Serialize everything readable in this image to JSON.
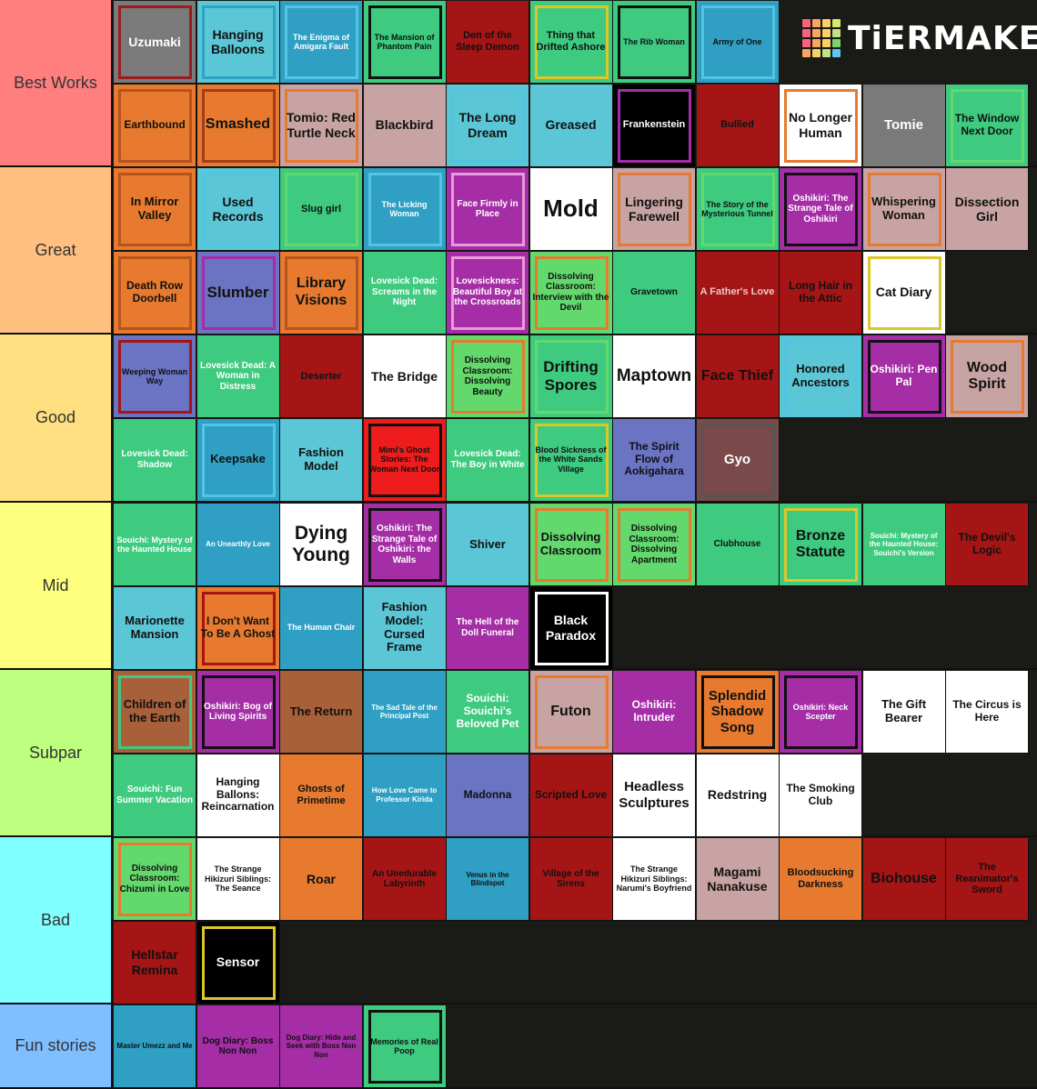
{
  "logo": {
    "text": "TiERMAKER",
    "grid_colors": [
      "#f9637a",
      "#f8a561",
      "#f9d265",
      "#d7e86d",
      "#f9637a",
      "#f8a561",
      "#f9d265",
      "#bfe28a",
      "#f9637a",
      "#f8a561",
      "#f9d265",
      "#7fd16b",
      "#f8a561",
      "#f9d265",
      "#bfe28a",
      "#5cc7f1"
    ]
  },
  "tiers": [
    {
      "label": "Best Works",
      "color": "#ff7f7f",
      "items": [
        {
          "text": "Uzumaki",
          "bg": "#7a7a7a",
          "border": "#9b1c1c",
          "fg": "#fff",
          "size": 14
        },
        {
          "text": "Hanging Balloons",
          "bg": "#5bc6d6",
          "border": "#2fa3c2",
          "fg": "#111",
          "size": 14
        },
        {
          "text": "The Enigma of Amigara Fault",
          "bg": "#2f9fc3",
          "border": "#52c5e2",
          "fg": "#fff",
          "size": 9
        },
        {
          "text": "The Mansion of Phantom Pain",
          "bg": "#3ecb80",
          "border": "#111",
          "fg": "#111",
          "size": 9
        },
        {
          "text": "Den of the Sleep Demon",
          "bg": "#a51515",
          "border": "#a51515",
          "fg": "#111",
          "size": 11
        },
        {
          "text": "Thing that Drifted Ashore",
          "bg": "#3ecb80",
          "border": "#dcc62a",
          "fg": "#111",
          "size": 11
        },
        {
          "text": "The Rib Woman",
          "bg": "#3ecb80",
          "border": "#111",
          "fg": "#111",
          "size": 9
        },
        {
          "text": "Army of One",
          "bg": "#2f9fc3",
          "border": "#52c5e2",
          "fg": "#111",
          "size": 9
        },
        {
          "text": "Earthbound",
          "bg": "#e77a2e",
          "border": "#b5541c",
          "fg": "#111",
          "size": 12
        },
        {
          "text": "Smashed",
          "bg": "#e77a2e",
          "border": "#a33d1b",
          "fg": "#111",
          "size": 16
        },
        {
          "text": "Tomio: Red Turtle Neck",
          "bg": "#c8a3a3",
          "border": "#e77a2e",
          "fg": "#111",
          "size": 14
        },
        {
          "text": "Blackbird",
          "bg": "#c8a3a3",
          "border": "#c8a3a3",
          "fg": "#111",
          "size": 14
        },
        {
          "text": "The Long Dream",
          "bg": "#5bc6d6",
          "border": "#52c5e2",
          "fg": "#111",
          "size": 14
        },
        {
          "text": "Greased",
          "bg": "#5bc6d6",
          "border": "#5bc6d6",
          "fg": "#111",
          "size": 14
        },
        {
          "text": "Frankenstein",
          "bg": "#000",
          "border": "#a52da6",
          "fg": "#fff",
          "size": 11
        },
        {
          "text": "Bullied",
          "bg": "#a51515",
          "border": "#a51515",
          "fg": "#111",
          "size": 11
        },
        {
          "text": "No Longer Human",
          "bg": "#fff",
          "border": "#e77a2e",
          "fg": "#111",
          "size": 14
        },
        {
          "text": "Tomie",
          "bg": "#7a7a7a",
          "border": "#7a7a7a",
          "fg": "#fff",
          "size": 15
        },
        {
          "text": "The Window Next Door",
          "bg": "#3ecb80",
          "border": "#63d96d",
          "fg": "#111",
          "size": 12
        }
      ]
    },
    {
      "label": "Great",
      "color": "#ffbf7f",
      "items": [
        {
          "text": "In Mirror Valley",
          "bg": "#e77a2e",
          "border": "#b5541c",
          "fg": "#111",
          "size": 13
        },
        {
          "text": "Used Records",
          "bg": "#5bc6d6",
          "border": "#52c5e2",
          "fg": "#111",
          "size": 14
        },
        {
          "text": "Slug girl",
          "bg": "#3ecb80",
          "border": "#63d96d",
          "fg": "#111",
          "size": 11
        },
        {
          "text": "The Licking Woman",
          "bg": "#2f9fc3",
          "border": "#52c5e2",
          "fg": "#fff",
          "size": 9
        },
        {
          "text": "Face Firmly in Place",
          "bg": "#a52da6",
          "border": "#e99bd6",
          "fg": "#fff",
          "size": 10
        },
        {
          "text": "Mold",
          "bg": "#fff",
          "border": "#fff",
          "fg": "#111",
          "size": 26
        },
        {
          "text": "Lingering Farewell",
          "bg": "#c8a3a3",
          "border": "#e77a2e",
          "fg": "#111",
          "size": 14
        },
        {
          "text": "The Story of the Mysterious Tunnel",
          "bg": "#3ecb80",
          "border": "#63d96d",
          "fg": "#111",
          "size": 9
        },
        {
          "text": "Oshikiri: The Strange Tale of Oshikiri",
          "bg": "#a52da6",
          "border": "#111",
          "fg": "#fff",
          "size": 10
        },
        {
          "text": "Whispering Woman",
          "bg": "#c8a3a3",
          "border": "#e77a2e",
          "fg": "#111",
          "size": 13
        },
        {
          "text": "Dissection Girl",
          "bg": "#c8a3a3",
          "border": "#c8a3a3",
          "fg": "#111",
          "size": 14
        },
        {
          "text": "Death Row Doorbell",
          "bg": "#e77a2e",
          "border": "#b5541c",
          "fg": "#111",
          "size": 12
        },
        {
          "text": "Slumber",
          "bg": "#6a74c3",
          "border": "#a52da6",
          "fg": "#111",
          "size": 17
        },
        {
          "text": "Library Visions",
          "bg": "#e77a2e",
          "border": "#b5541c",
          "fg": "#111",
          "size": 16
        },
        {
          "text": "Lovesick Dead: Screams in the Night",
          "bg": "#3ecb80",
          "border": "#3ecb80",
          "fg": "#fff",
          "size": 10
        },
        {
          "text": "Lovesickness: Beautiful Boy at the Crossroads",
          "bg": "#a52da6",
          "border": "#e99bd6",
          "fg": "#fff",
          "size": 10
        },
        {
          "text": "Dissolving Classroom: Interview with the Devil",
          "bg": "#63d96d",
          "border": "#e77a2e",
          "fg": "#111",
          "size": 10
        },
        {
          "text": "Gravetown",
          "bg": "#3ecb80",
          "border": "#3ecb80",
          "fg": "#111",
          "size": 10
        },
        {
          "text": "A Father's Love",
          "bg": "#a51515",
          "border": "#a51515",
          "fg": "#e8c8c8",
          "size": 11
        },
        {
          "text": "Long Hair in the Attic",
          "bg": "#a51515",
          "border": "#a51515",
          "fg": "#111",
          "size": 12
        },
        {
          "text": "Cat Diary",
          "bg": "#fff",
          "border": "#dcc62a",
          "fg": "#111",
          "size": 14
        }
      ]
    },
    {
      "label": "Good",
      "color": "#ffdf7f",
      "items": [
        {
          "text": "Weeping Woman Way",
          "bg": "#6a74c3",
          "border": "#a51515",
          "fg": "#111",
          "size": 9
        },
        {
          "text": "Lovesick Dead: A Woman in Distress",
          "bg": "#3ecb80",
          "border": "#3ecb80",
          "fg": "#fff",
          "size": 10
        },
        {
          "text": "Deserter",
          "bg": "#a51515",
          "border": "#a51515",
          "fg": "#111",
          "size": 11
        },
        {
          "text": "The Bridge",
          "bg": "#fff",
          "border": "#fff",
          "fg": "#111",
          "size": 14
        },
        {
          "text": "Dissolving Classroom: Dissolving Beauty",
          "bg": "#63d96d",
          "border": "#e77a2e",
          "fg": "#111",
          "size": 10
        },
        {
          "text": "Drifting Spores",
          "bg": "#3ecb80",
          "border": "#63d96d",
          "fg": "#111",
          "size": 17
        },
        {
          "text": "Maptown",
          "bg": "#fff",
          "border": "#fff",
          "fg": "#111",
          "size": 19
        },
        {
          "text": "Face Thief",
          "bg": "#a51515",
          "border": "#a51515",
          "fg": "#111",
          "size": 16
        },
        {
          "text": "Honored Ancestors",
          "bg": "#5bc6d6",
          "border": "#52c5e2",
          "fg": "#111",
          "size": 13
        },
        {
          "text": "Oshikiri: Pen Pal",
          "bg": "#a52da6",
          "border": "#111",
          "fg": "#fff",
          "size": 12
        },
        {
          "text": "Wood Spirit",
          "bg": "#c8a3a3",
          "border": "#e77a2e",
          "fg": "#111",
          "size": 16
        },
        {
          "text": "Lovesick Dead: Shadow",
          "bg": "#3ecb80",
          "border": "#3ecb80",
          "fg": "#fff",
          "size": 10
        },
        {
          "text": "Keepsake",
          "bg": "#2f9fc3",
          "border": "#52c5e2",
          "fg": "#111",
          "size": 13
        },
        {
          "text": "Fashion Model",
          "bg": "#5bc6d6",
          "border": "#5bc6d6",
          "fg": "#111",
          "size": 13
        },
        {
          "text": "Mimi's Ghost Stories: The Woman Next Door",
          "bg": "#ee1c1c",
          "border": "#111",
          "fg": "#111",
          "size": 9
        },
        {
          "text": "Lovesick Dead: The Boy in White",
          "bg": "#3ecb80",
          "border": "#3ecb80",
          "fg": "#fff",
          "size": 10
        },
        {
          "text": "Blood Sickness of the White Sands Village",
          "bg": "#3ecb80",
          "border": "#dcc62a",
          "fg": "#111",
          "size": 9
        },
        {
          "text": "The Spirit Flow of Aokigahara",
          "bg": "#6a74c3",
          "border": "#6a74c3",
          "fg": "#111",
          "size": 12
        },
        {
          "text": "Gyo",
          "bg": "#7a4a4a",
          "border": "#555",
          "fg": "#fff",
          "size": 15
        }
      ]
    },
    {
      "label": "Mid",
      "color": "#ffff7f",
      "items": [
        {
          "text": "Souichi: Mystery of the Haunted House",
          "bg": "#3ecb80",
          "border": "#3ecb80",
          "fg": "#fff",
          "size": 9
        },
        {
          "text": "An Unearthly Love",
          "bg": "#2f9fc3",
          "border": "#2f9fc3",
          "fg": "#fff",
          "size": 8
        },
        {
          "text": "Dying Young",
          "bg": "#fff",
          "border": "#fff",
          "fg": "#111",
          "size": 21
        },
        {
          "text": "Oshikiri: The Strange Tale of Oshikiri: the Walls",
          "bg": "#a52da6",
          "border": "#111",
          "fg": "#fff",
          "size": 10
        },
        {
          "text": "Shiver",
          "bg": "#5bc6d6",
          "border": "#5bc6d6",
          "fg": "#111",
          "size": 13
        },
        {
          "text": "Dissolving Classroom",
          "bg": "#63d96d",
          "border": "#e77a2e",
          "fg": "#111",
          "size": 13
        },
        {
          "text": "Dissolving Classroom: Dissolving Apartment",
          "bg": "#63d96d",
          "border": "#e77a2e",
          "fg": "#111",
          "size": 10
        },
        {
          "text": "Clubhouse",
          "bg": "#3ecb80",
          "border": "#3ecb80",
          "fg": "#111",
          "size": 10
        },
        {
          "text": "Bronze Statute",
          "bg": "#3ecb80",
          "border": "#dcc62a",
          "fg": "#111",
          "size": 16
        },
        {
          "text": "Souichi: Mystery of the Haunted House: Souichi's Version",
          "bg": "#3ecb80",
          "border": "#3ecb80",
          "fg": "#fff",
          "size": 8
        },
        {
          "text": "The Devil's Logic",
          "bg": "#a51515",
          "border": "#a51515",
          "fg": "#111",
          "size": 12
        },
        {
          "text": "Marionette Mansion",
          "bg": "#5bc6d6",
          "border": "#5bc6d6",
          "fg": "#111",
          "size": 13
        },
        {
          "text": "I Don't Want To Be A Ghost",
          "bg": "#e77a2e",
          "border": "#a51515",
          "fg": "#111",
          "size": 12
        },
        {
          "text": "The Human Chair",
          "bg": "#2f9fc3",
          "border": "#2f9fc3",
          "fg": "#fff",
          "size": 9
        },
        {
          "text": "Fashion Model: Cursed Frame",
          "bg": "#5bc6d6",
          "border": "#5bc6d6",
          "fg": "#111",
          "size": 13
        },
        {
          "text": "The Hell of the Doll Funeral",
          "bg": "#a52da6",
          "border": "#a52da6",
          "fg": "#fff",
          "size": 10
        },
        {
          "text": "Black Paradox",
          "bg": "#000",
          "border": "#fff",
          "fg": "#fff",
          "size": 14
        }
      ]
    },
    {
      "label": "Subpar",
      "color": "#bfff7f",
      "items": [
        {
          "text": "Children of the Earth",
          "bg": "#a8603a",
          "border": "#3ecb80",
          "fg": "#111",
          "size": 13
        },
        {
          "text": "Oshikiri: Bog of Living Spirits",
          "bg": "#a52da6",
          "border": "#111",
          "fg": "#fff",
          "size": 10
        },
        {
          "text": "The Return",
          "bg": "#a8603a",
          "border": "#a8603a",
          "fg": "#111",
          "size": 13
        },
        {
          "text": "The Sad Tale of the Principal Post",
          "bg": "#2f9fc3",
          "border": "#2f9fc3",
          "fg": "#fff",
          "size": 8
        },
        {
          "text": "Souichi: Souichi's Beloved Pet",
          "bg": "#3ecb80",
          "border": "#3ecb80",
          "fg": "#fff",
          "size": 12
        },
        {
          "text": "Futon",
          "bg": "#c8a3a3",
          "border": "#e77a2e",
          "fg": "#111",
          "size": 16
        },
        {
          "text": "Oshikiri: Intruder",
          "bg": "#a52da6",
          "border": "#a52da6",
          "fg": "#fff",
          "size": 12
        },
        {
          "text": "Splendid Shadow Song",
          "bg": "#e77a2e",
          "border": "#111",
          "fg": "#111",
          "size": 15
        },
        {
          "text": "Oshikiri: Neck Scepter",
          "bg": "#a52da6",
          "border": "#111",
          "fg": "#fff",
          "size": 9
        },
        {
          "text": "The Gift Bearer",
          "bg": "#fff",
          "border": "#fff",
          "fg": "#111",
          "size": 13
        },
        {
          "text": "The Circus is Here",
          "bg": "#fff",
          "border": "#fff",
          "fg": "#111",
          "size": 12
        },
        {
          "text": "Souichi: Fun Summer Vacation",
          "bg": "#3ecb80",
          "border": "#3ecb80",
          "fg": "#fff",
          "size": 10
        },
        {
          "text": "Hanging Ballons: Reincarnation",
          "bg": "#fff",
          "border": "#fff",
          "fg": "#111",
          "size": 12
        },
        {
          "text": "Ghosts of Primetime",
          "bg": "#e77a2e",
          "border": "#e77a2e",
          "fg": "#111",
          "size": 11
        },
        {
          "text": "How Love Came to Professor Kirida",
          "bg": "#2f9fc3",
          "border": "#2f9fc3",
          "fg": "#fff",
          "size": 8
        },
        {
          "text": "Madonna",
          "bg": "#6a74c3",
          "border": "#6a74c3",
          "fg": "#111",
          "size": 12
        },
        {
          "text": "Scripted Love",
          "bg": "#a51515",
          "border": "#a51515",
          "fg": "#111",
          "size": 12
        },
        {
          "text": "Headless Sculptures",
          "bg": "#fff",
          "border": "#fff",
          "fg": "#111",
          "size": 15
        },
        {
          "text": "Redstring",
          "bg": "#fff",
          "border": "#fff",
          "fg": "#111",
          "size": 14
        },
        {
          "text": "The Smoking Club",
          "bg": "#fff",
          "border": "#fff",
          "fg": "#111",
          "size": 12
        }
      ]
    },
    {
      "label": "Bad",
      "color": "#7fffff",
      "items": [
        {
          "text": "Dissolving Classroom: Chizumi in Love",
          "bg": "#63d96d",
          "border": "#e77a2e",
          "fg": "#111",
          "size": 10
        },
        {
          "text": "The Strange Hikizuri Siblings: The Seance",
          "bg": "#fff",
          "border": "#fff",
          "fg": "#111",
          "size": 9
        },
        {
          "text": "Roar",
          "bg": "#e77a2e",
          "border": "#e77a2e",
          "fg": "#111",
          "size": 14
        },
        {
          "text": "An Unedurable Labyrinth",
          "bg": "#a51515",
          "border": "#a51515",
          "fg": "#111",
          "size": 10
        },
        {
          "text": "Venus in the Blindspot",
          "bg": "#2f9fc3",
          "border": "#2f9fc3",
          "fg": "#111",
          "size": 8
        },
        {
          "text": "Village of the Sirens",
          "bg": "#a51515",
          "border": "#a51515",
          "fg": "#111",
          "size": 10
        },
        {
          "text": "The Strange Hikizuri Siblings: Narumi's Boyfriend",
          "bg": "#fff",
          "border": "#fff",
          "fg": "#111",
          "size": 9
        },
        {
          "text": "Magami Nanakuse",
          "bg": "#c8a3a3",
          "border": "#c8a3a3",
          "fg": "#111",
          "size": 14
        },
        {
          "text": "Bloodsucking Darkness",
          "bg": "#e77a2e",
          "border": "#e77a2e",
          "fg": "#111",
          "size": 11
        },
        {
          "text": "Biohouse",
          "bg": "#a51515",
          "border": "#a51515",
          "fg": "#111",
          "size": 16
        },
        {
          "text": "The Reanimator's Sword",
          "bg": "#a51515",
          "border": "#a51515",
          "fg": "#111",
          "size": 11
        },
        {
          "text": "Hellstar Remina",
          "bg": "#a51515",
          "border": "#a51515",
          "fg": "#111",
          "size": 14
        },
        {
          "text": "Sensor",
          "bg": "#000",
          "border": "#dcc62a",
          "fg": "#fff",
          "size": 14
        }
      ]
    },
    {
      "label": "Fun stories",
      "color": "#7fbfff",
      "items": [
        {
          "text": "Master Umezz and Me",
          "bg": "#2f9fc3",
          "border": "#2f9fc3",
          "fg": "#111",
          "size": 8
        },
        {
          "text": "Dog Diary: Boss Non Non",
          "bg": "#a52da6",
          "border": "#a52da6",
          "fg": "#111",
          "size": 10
        },
        {
          "text": "Dog Diary: Hide and Seek with Boss Non Non",
          "bg": "#a52da6",
          "border": "#a52da6",
          "fg": "#111",
          "size": 8
        },
        {
          "text": "Memories of Real Poop",
          "bg": "#3ecb80",
          "border": "#111",
          "fg": "#111",
          "size": 9
        }
      ]
    }
  ]
}
